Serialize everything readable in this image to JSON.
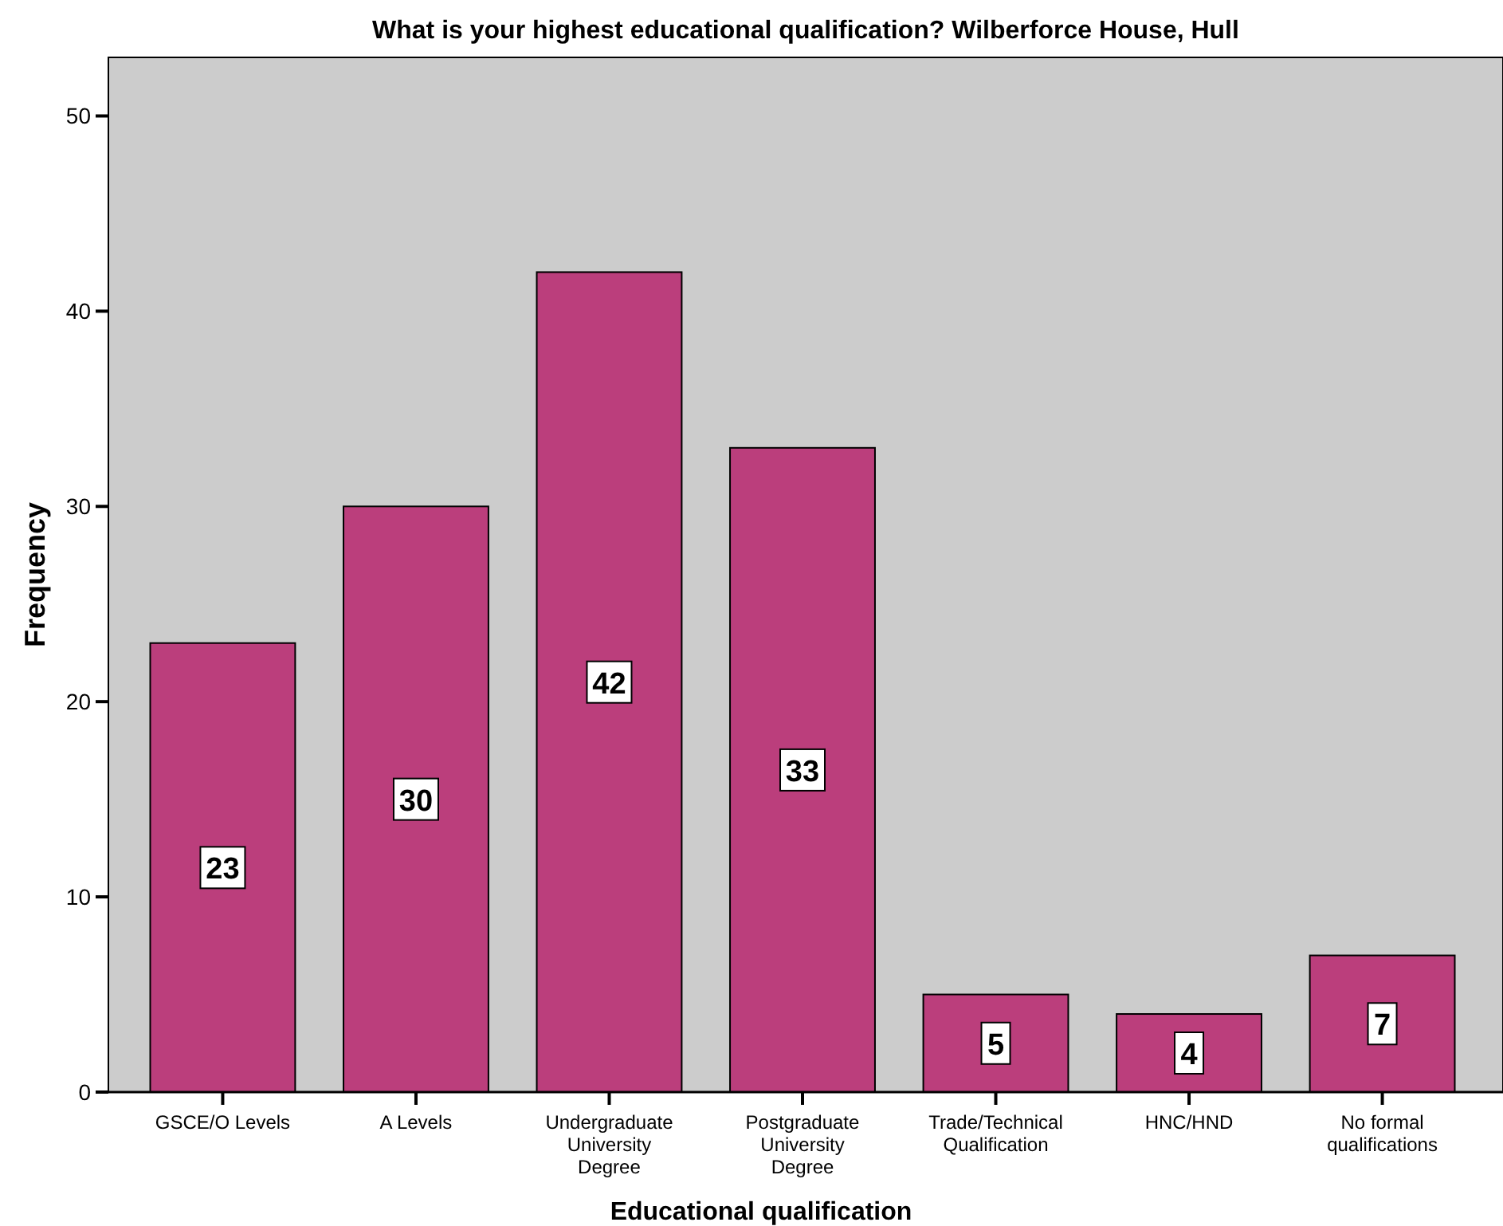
{
  "chart_data": {
    "type": "bar",
    "title": "What is your highest educational qualification? Wilberforce House, Hull",
    "xlabel": "Educational qualification",
    "ylabel": "Frequency",
    "categories": [
      "GSCE/O Levels",
      "A Levels",
      "Undergraduate University Degree",
      "Postgraduate University Degree",
      "Trade/Technical Qualification",
      "HNC/HND",
      "No formal qualifications"
    ],
    "values": [
      23,
      30,
      42,
      33,
      5,
      4,
      7
    ],
    "color": "#bb3e7c",
    "ylim": [
      0,
      53
    ],
    "yticks": [
      0,
      10,
      20,
      30,
      40,
      50
    ],
    "grid": false,
    "data_labels": true
  }
}
